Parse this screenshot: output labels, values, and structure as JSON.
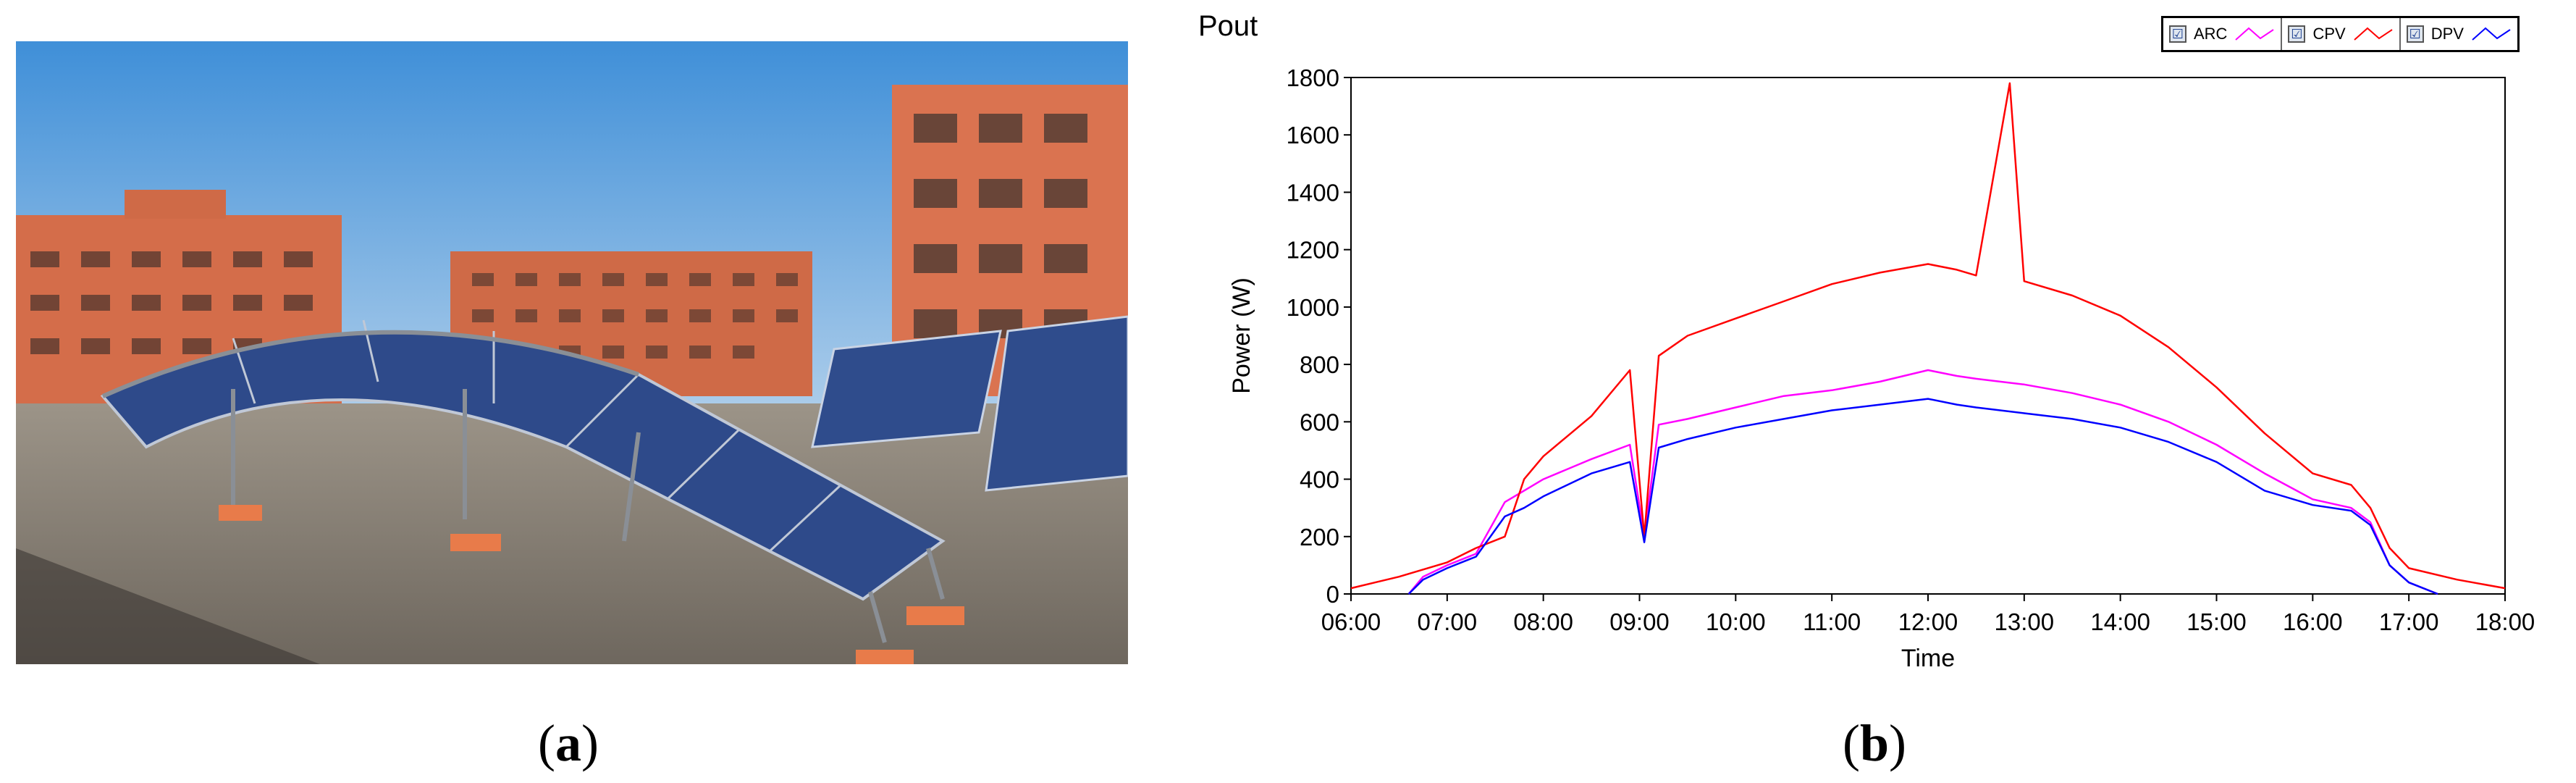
{
  "panel_a": {
    "caption_letter": "a"
  },
  "panel_b": {
    "caption_letter": "b"
  },
  "chart_data": {
    "type": "line",
    "title": "Pout",
    "xlabel": "Time",
    "ylabel": "Power (W)",
    "x_ticks": [
      "06:00",
      "07:00",
      "08:00",
      "09:00",
      "10:00",
      "11:00",
      "12:00",
      "13:00",
      "14:00",
      "15:00",
      "16:00",
      "17:00",
      "18:00"
    ],
    "y_ticks": [
      0,
      200,
      400,
      600,
      800,
      1000,
      1200,
      1400,
      1600,
      1800
    ],
    "xlim_hours": [
      6,
      18
    ],
    "ylim": [
      0,
      1800
    ],
    "grid": false,
    "legend_position": "top-right",
    "legend": [
      {
        "name": "ARC",
        "checked": "☑"
      },
      {
        "name": "CPV",
        "checked": "☑"
      },
      {
        "name": "DPV",
        "checked": "☑"
      }
    ],
    "series": [
      {
        "name": "ARC",
        "color": "#ff00ff",
        "x": [
          6.6,
          6.75,
          7.0,
          7.3,
          7.6,
          7.8,
          8.0,
          8.5,
          8.9,
          9.05,
          9.2,
          9.5,
          10.0,
          10.5,
          11.0,
          11.5,
          12.0,
          12.3,
          12.5,
          13.0,
          13.5,
          14.0,
          14.5,
          15.0,
          15.5,
          16.0,
          16.4,
          16.6,
          16.8,
          17.0,
          17.3
        ],
        "y": [
          0,
          60,
          100,
          140,
          320,
          360,
          400,
          470,
          520,
          200,
          590,
          610,
          650,
          690,
          710,
          740,
          780,
          760,
          750,
          730,
          700,
          660,
          600,
          520,
          420,
          330,
          300,
          250,
          100,
          40,
          0
        ]
      },
      {
        "name": "CPV",
        "color": "#ff0000",
        "x": [
          6.0,
          6.5,
          7.0,
          7.3,
          7.6,
          7.8,
          8.0,
          8.5,
          8.9,
          9.05,
          9.2,
          9.5,
          10.0,
          10.5,
          11.0,
          11.5,
          12.0,
          12.3,
          12.5,
          12.85,
          13.0,
          13.5,
          14.0,
          14.5,
          15.0,
          15.5,
          16.0,
          16.4,
          16.6,
          16.8,
          17.0,
          17.5,
          18.0
        ],
        "y": [
          20,
          60,
          110,
          160,
          200,
          400,
          480,
          620,
          780,
          200,
          830,
          900,
          960,
          1020,
          1080,
          1120,
          1150,
          1130,
          1110,
          1780,
          1090,
          1040,
          970,
          860,
          720,
          560,
          420,
          380,
          300,
          160,
          90,
          50,
          20
        ]
      },
      {
        "name": "DPV",
        "color": "#0000ff",
        "x": [
          6.6,
          6.75,
          7.0,
          7.3,
          7.6,
          7.8,
          8.0,
          8.5,
          8.9,
          9.05,
          9.2,
          9.5,
          10.0,
          10.5,
          11.0,
          11.5,
          12.0,
          12.3,
          12.5,
          13.0,
          13.5,
          14.0,
          14.5,
          15.0,
          15.5,
          16.0,
          16.4,
          16.6,
          16.8,
          17.0,
          17.3
        ],
        "y": [
          0,
          50,
          90,
          130,
          270,
          300,
          340,
          420,
          460,
          180,
          510,
          540,
          580,
          610,
          640,
          660,
          680,
          660,
          650,
          630,
          610,
          580,
          530,
          460,
          360,
          310,
          290,
          240,
          100,
          40,
          0
        ]
      }
    ]
  },
  "colors": {
    "sky_top": "#3f8fd8",
    "sky_bottom": "#b7d3ec",
    "brick": "#d9714f",
    "panel_blue": "#2f4c8c",
    "roof": "#8f877c"
  }
}
